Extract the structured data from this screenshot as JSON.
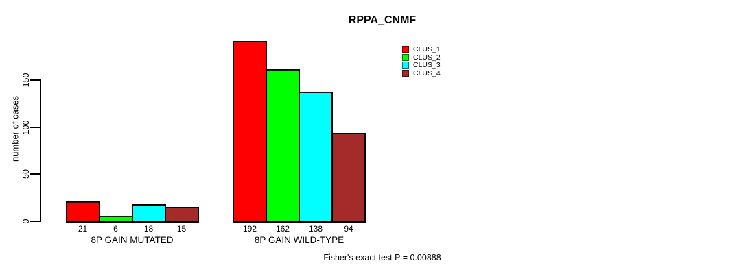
{
  "title": "RPPA_CNMF",
  "footer": "Fisher's exact test P = 0.00888",
  "y_axis": {
    "label": "number of cases",
    "ticks": [
      0,
      50,
      100,
      150
    ]
  },
  "legend": [
    {
      "label": "CLUS_1",
      "color": "#FF0000"
    },
    {
      "label": "CLUS_2",
      "color": "#00FF00"
    },
    {
      "label": "CLUS_3",
      "color": "#00FFFF"
    },
    {
      "label": "CLUS_4",
      "color": "#A52A2A"
    }
  ],
  "chart_data": {
    "type": "bar",
    "title": "RPPA_CNMF",
    "xlabel": "",
    "ylabel": "number of cases",
    "ylim": [
      0,
      150
    ],
    "yticks": [
      0,
      50,
      100,
      150
    ],
    "grid": false,
    "legend_position": "top-right",
    "bar_value_labels": true,
    "categories": [
      "8P GAIN MUTATED",
      "8P GAIN WILD-TYPE"
    ],
    "series": [
      {
        "name": "CLUS_1",
        "color": "#FF0000",
        "values": [
          21,
          192
        ]
      },
      {
        "name": "CLUS_2",
        "color": "#00FF00",
        "values": [
          6,
          162
        ]
      },
      {
        "name": "CLUS_3",
        "color": "#00FFFF",
        "values": [
          18,
          138
        ]
      },
      {
        "name": "CLUS_4",
        "color": "#A52A2A",
        "values": [
          15,
          94
        ]
      }
    ],
    "annotation": "Fisher's exact test P = 0.00888"
  }
}
